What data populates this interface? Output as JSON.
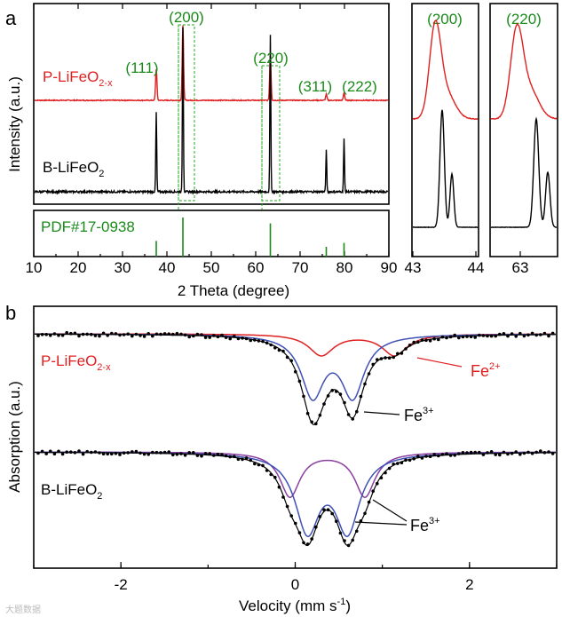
{
  "chart_data": [
    {
      "panel": "a",
      "type": "line",
      "xlabel": "2 Theta (degree)",
      "ylabel": "Intensity (a.u.)",
      "xlim": [
        10,
        90
      ],
      "x_ticks": [
        "10",
        "20",
        "30",
        "40",
        "50",
        "60",
        "70",
        "80",
        "90"
      ],
      "series": [
        {
          "name": "P-LiFeO2-x",
          "color": "#e02020",
          "peaks": [
            {
              "x": 37.6,
              "h": 0.42
            },
            {
              "x": 43.6,
              "h": 1.0
            },
            {
              "x": 63.3,
              "h": 0.6
            },
            {
              "x": 75.9,
              "h": 0.08
            },
            {
              "x": 79.9,
              "h": 0.1
            }
          ]
        },
        {
          "name": "B-LiFeO2",
          "color": "#000000",
          "peaks": [
            {
              "x": 37.6,
              "h": 0.48
            },
            {
              "x": 43.6,
              "h": 1.0
            },
            {
              "x": 63.3,
              "h": 0.95
            },
            {
              "x": 75.9,
              "h": 0.25
            },
            {
              "x": 79.9,
              "h": 0.32
            }
          ]
        }
      ],
      "peak_labels": [
        {
          "text": "(111)",
          "x": 37.6
        },
        {
          "text": "(200)",
          "x": 43.6
        },
        {
          "text": "(220)",
          "x": 63.3
        },
        {
          "text": "(311)",
          "x": 75.9
        },
        {
          "text": "(222)",
          "x": 79.9
        }
      ],
      "reference": {
        "name": "PDF#17-0938",
        "color": "#1a8a1a",
        "lines": [
          {
            "x": 37.6,
            "h": 0.4
          },
          {
            "x": 43.6,
            "h": 1.0
          },
          {
            "x": 63.3,
            "h": 0.85
          },
          {
            "x": 75.9,
            "h": 0.25
          },
          {
            "x": 79.9,
            "h": 0.35
          }
        ]
      }
    },
    {
      "panel": "a-inset-200",
      "type": "line",
      "title": "(200)",
      "xlim": [
        43,
        44
      ],
      "x_ticks": [
        "43",
        "44"
      ]
    },
    {
      "panel": "a-inset-220",
      "type": "line",
      "title": "(220)",
      "x_ticks": [
        "63"
      ]
    },
    {
      "panel": "b",
      "type": "line",
      "xlabel_main": "Velocity (mm s",
      "xlabel_sup": "-1",
      "xlabel_end": ")",
      "ylabel": "Absorption (a.u.)",
      "xlim": [
        -3,
        3
      ],
      "x_ticks": [
        {
          "v": -2,
          "label": "-2"
        },
        {
          "v": 0,
          "label": "0"
        },
        {
          "v": 2,
          "label": "2"
        }
      ],
      "samples": [
        {
          "name": "P-LiFeO2-x",
          "components": [
            {
              "name": "Fe3+ doublet",
              "color": "#3f51b5",
              "center": 0.43,
              "split": 0.46,
              "depth": 0.68,
              "width": 0.32
            },
            {
              "name": "Fe2+ doublet",
              "color": "#e02020",
              "center": 0.72,
              "split": 0.84,
              "depth": 0.2,
              "width": 0.35
            }
          ]
        },
        {
          "name": "B-LiFeO2",
          "components": [
            {
              "name": "Fe3+ doublet (inner)",
              "color": "#3f51b5",
              "center": 0.37,
              "split": 0.46,
              "depth": 0.68,
              "width": 0.34
            },
            {
              "name": "Fe3+ doublet (outer)",
              "color": "#8a3fa0",
              "center": 0.37,
              "split": 0.86,
              "depth": 0.4,
              "width": 0.28
            }
          ]
        }
      ]
    }
  ],
  "labels": {
    "panel_a": "a",
    "panel_b": "b",
    "p_sample": "P-LiFeO",
    "p_sub": "2-x",
    "b_sample": "B-LiFeO",
    "b_sub": "2",
    "pdf": "PDF#17-0938",
    "fe_ion": "Fe",
    "fe2_sup": "2+",
    "fe3_sup": "3+",
    "watermark": "大题数据"
  }
}
